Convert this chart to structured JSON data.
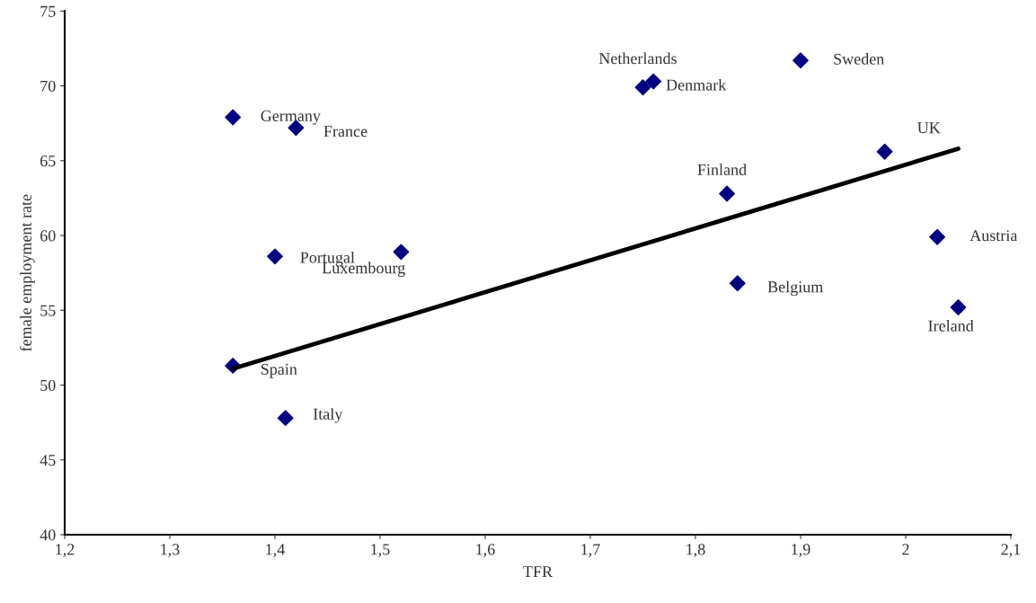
{
  "chart_data": {
    "type": "scatter",
    "xlabel": "TFR",
    "ylabel": "female employment rate",
    "xlim": [
      1.2,
      2.1
    ],
    "ylim": [
      40,
      75
    ],
    "xticks": [
      {
        "value": 1.2,
        "label": "1,2"
      },
      {
        "value": 1.3,
        "label": "1,3"
      },
      {
        "value": 1.4,
        "label": "1,4"
      },
      {
        "value": 1.5,
        "label": "1,5"
      },
      {
        "value": 1.6,
        "label": "1,6"
      },
      {
        "value": 1.7,
        "label": "1,7"
      },
      {
        "value": 1.8,
        "label": "1,8"
      },
      {
        "value": 1.9,
        "label": "1,9"
      },
      2,
      {
        "value": 2.1,
        "label": "2,1"
      }
    ],
    "yticks": [
      40,
      45,
      50,
      55,
      60,
      65,
      70,
      75
    ],
    "grid": false,
    "series": [
      {
        "marker": "diamond",
        "color": "#000080",
        "x": [
          1.36,
          1.42,
          1.4,
          1.52,
          1.36,
          1.41,
          1.75,
          1.76,
          1.9,
          1.98,
          1.83,
          1.84,
          2.03,
          2.05
        ],
        "values": [
          67.9,
          67.2,
          58.6,
          58.9,
          51.3,
          47.8,
          69.9,
          70.3,
          71.7,
          65.6,
          62.8,
          56.8,
          59.9,
          55.2
        ]
      },
      {
        "type": "line",
        "marker": "none",
        "color": "#000000",
        "x": [
          1.36,
          2.05
        ],
        "values": [
          51.1,
          65.8
        ]
      }
    ],
    "annotations": [
      {
        "text": "Germany",
        "x": 1.36,
        "y": 67.9
      },
      {
        "text": "France",
        "x": 1.42,
        "y": 67.2
      },
      {
        "text": "Portugal",
        "x": 1.4,
        "y": 58.6
      },
      {
        "text": "Luxembourg",
        "x": 1.52,
        "y": 58.9
      },
      {
        "text": "Spain",
        "x": 1.36,
        "y": 51.3
      },
      {
        "text": "Italy",
        "x": 1.41,
        "y": 47.8
      },
      {
        "text": "Netherlands",
        "x": 1.75,
        "y": 69.9
      },
      {
        "text": "Denmark",
        "x": 1.76,
        "y": 70.3
      },
      {
        "text": "Sweden",
        "x": 1.9,
        "y": 71.7
      },
      {
        "text": "UK",
        "x": 1.98,
        "y": 65.6
      },
      {
        "text": "Finland",
        "x": 1.83,
        "y": 62.8
      },
      {
        "text": "Belgium",
        "x": 1.84,
        "y": 56.8
      },
      {
        "text": "Austria",
        "x": 2.03,
        "y": 59.9
      },
      {
        "text": "Ireland",
        "x": 2.05,
        "y": 55.2
      }
    ]
  }
}
